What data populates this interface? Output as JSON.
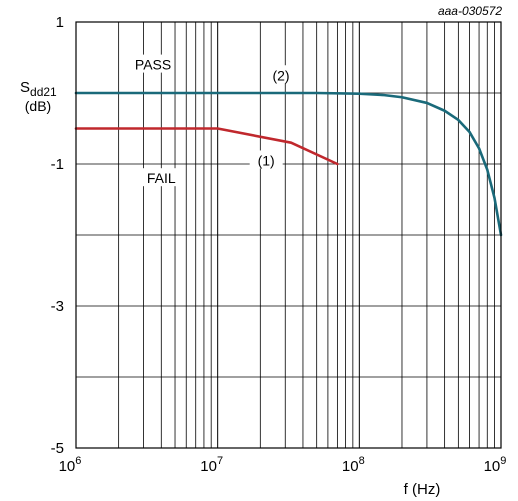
{
  "figure_id": "aaa-030572",
  "chart_data": {
    "type": "line",
    "x_scale": "log",
    "xlabel": "f (Hz)",
    "ylabel_main": "S",
    "ylabel_sub": "dd21",
    "ylabel_unit": "(dB)",
    "xlim": [
      1000000,
      1000000000
    ],
    "ylim": [
      -5,
      1
    ],
    "x_ticks": [
      {
        "value": 1000000,
        "base": "10",
        "exp": "6"
      },
      {
        "value": 10000000,
        "base": "10",
        "exp": "7"
      },
      {
        "value": 100000000,
        "base": "10",
        "exp": "8"
      },
      {
        "value": 1000000000,
        "base": "10",
        "exp": "9"
      }
    ],
    "y_ticks": [
      {
        "value": 1,
        "label": "1"
      },
      {
        "value": -1,
        "label": "-1"
      },
      {
        "value": -3,
        "label": "-3"
      },
      {
        "value": -5,
        "label": "-5"
      }
    ],
    "y_grid": [
      1,
      0,
      -1,
      -2,
      -3,
      -4,
      -5
    ],
    "grid": true,
    "series": [
      {
        "name": "(2)",
        "color": "#1a6a7a",
        "points": [
          [
            1000000,
            0.0
          ],
          [
            10000000,
            0.0
          ],
          [
            50000000,
            0.0
          ],
          [
            100000000,
            -0.01
          ],
          [
            150000000,
            -0.03
          ],
          [
            200000000,
            -0.06
          ],
          [
            300000000,
            -0.14
          ],
          [
            400000000,
            -0.25
          ],
          [
            500000000,
            -0.38
          ],
          [
            600000000,
            -0.55
          ],
          [
            700000000,
            -0.78
          ],
          [
            800000000,
            -1.08
          ],
          [
            900000000,
            -1.48
          ],
          [
            1000000000,
            -2.0
          ]
        ]
      },
      {
        "name": "(1)",
        "color": "#c0282d",
        "points": [
          [
            1000000,
            -0.5
          ],
          [
            10000000,
            -0.5
          ],
          [
            33000000,
            -0.7
          ],
          [
            70000000,
            -1.0
          ]
        ]
      }
    ],
    "annotations": [
      {
        "text": "PASS",
        "x": 3500000,
        "y": 0.4
      },
      {
        "text": "FAIL",
        "x": 4000000,
        "y": -1.2
      },
      {
        "text": "(2)",
        "x": 28000000,
        "y": 0.25,
        "color": "#1a6a7a"
      },
      {
        "text": "(1)",
        "x": 22000000,
        "y": -0.95,
        "color": "#c0282d"
      }
    ]
  }
}
